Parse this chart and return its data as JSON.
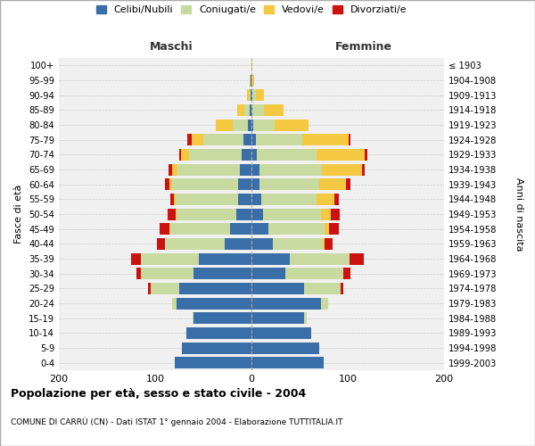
{
  "age_groups": [
    "0-4",
    "5-9",
    "10-14",
    "15-19",
    "20-24",
    "25-29",
    "30-34",
    "35-39",
    "40-44",
    "45-49",
    "50-54",
    "55-59",
    "60-64",
    "65-69",
    "70-74",
    "75-79",
    "80-84",
    "85-89",
    "90-94",
    "95-99",
    "100+"
  ],
  "birth_years": [
    "1999-2003",
    "1994-1998",
    "1989-1993",
    "1984-1988",
    "1979-1983",
    "1974-1978",
    "1969-1973",
    "1964-1968",
    "1959-1963",
    "1954-1958",
    "1949-1953",
    "1944-1948",
    "1939-1943",
    "1934-1938",
    "1929-1933",
    "1924-1928",
    "1919-1923",
    "1914-1918",
    "1909-1913",
    "1904-1908",
    "≤ 1903"
  ],
  "colors": {
    "celibe": "#3a6ea8",
    "coniugato": "#c8daa0",
    "vedovo": "#f5c842",
    "divorziato": "#cc1111"
  },
  "maschi": {
    "celibe": [
      80,
      72,
      68,
      60,
      78,
      75,
      60,
      55,
      28,
      22,
      16,
      14,
      14,
      12,
      10,
      8,
      4,
      2,
      1,
      1,
      0
    ],
    "coniugato": [
      0,
      0,
      0,
      1,
      4,
      30,
      55,
      60,
      62,
      62,
      62,
      65,
      68,
      65,
      55,
      42,
      15,
      5,
      1,
      0,
      0
    ],
    "vedovo": [
      0,
      0,
      0,
      0,
      0,
      0,
      0,
      0,
      0,
      1,
      1,
      2,
      3,
      5,
      8,
      12,
      18,
      8,
      3,
      1,
      0
    ],
    "divorziato": [
      0,
      0,
      0,
      0,
      0,
      2,
      4,
      10,
      8,
      10,
      8,
      3,
      5,
      4,
      2,
      5,
      0,
      0,
      0,
      0,
      0
    ]
  },
  "femmine": {
    "nubile": [
      75,
      70,
      62,
      55,
      72,
      55,
      35,
      40,
      22,
      18,
      12,
      10,
      8,
      8,
      6,
      5,
      2,
      1,
      1,
      0,
      0
    ],
    "coniugata": [
      0,
      0,
      0,
      2,
      8,
      38,
      60,
      62,
      52,
      58,
      60,
      58,
      62,
      65,
      62,
      48,
      22,
      12,
      4,
      1,
      0
    ],
    "vedova": [
      0,
      0,
      0,
      0,
      0,
      0,
      0,
      0,
      2,
      5,
      10,
      18,
      28,
      42,
      50,
      48,
      35,
      20,
      8,
      2,
      1
    ],
    "divorziata": [
      0,
      0,
      0,
      0,
      0,
      2,
      8,
      15,
      8,
      10,
      10,
      5,
      5,
      3,
      2,
      2,
      0,
      0,
      0,
      0,
      0
    ]
  },
  "xlim": 200,
  "title_main": "Popolazione per età, sesso e stato civile - 2004",
  "title_sub": "COMUNE DI CARRÙ (CN) - Dati ISTAT 1° gennaio 2004 - Elaborazione TUTTITALIA.IT",
  "xlabel_left": "Maschi",
  "xlabel_right": "Femmine",
  "ylabel_left": "Fasce di età",
  "ylabel_right": "Anni di nascita",
  "legend_labels": [
    "Celibi/Nubili",
    "Coniugati/e",
    "Vedovi/e",
    "Divorziati/e"
  ],
  "bg_color": "#ffffff",
  "plot_bg": "#f0f0f0"
}
